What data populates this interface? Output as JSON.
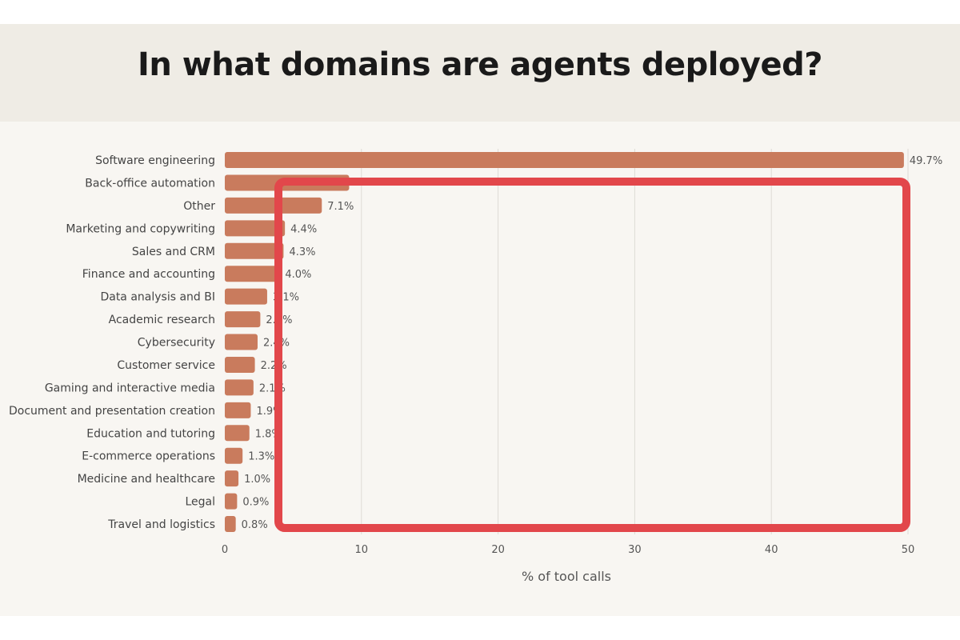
{
  "chart_data": {
    "type": "bar",
    "orientation": "horizontal",
    "title": "In what domains are agents deployed?",
    "xlabel": "% of tool calls",
    "ylabel": "",
    "xlim": [
      0,
      50
    ],
    "xticks": [
      "0",
      "10",
      "20",
      "30",
      "40",
      "50"
    ],
    "grid": true,
    "categories": [
      "Software engineering",
      "Back-office automation",
      "Other",
      "Marketing and copywriting",
      "Sales and CRM",
      "Finance and accounting",
      "Data analysis and BI",
      "Academic research",
      "Cybersecurity",
      "Customer service",
      "Gaming and interactive media",
      "Document and presentation creation",
      "Education and tutoring",
      "E-commerce operations",
      "Medicine and healthcare",
      "Legal",
      "Travel and logistics"
    ],
    "values": [
      49.7,
      9.1,
      7.1,
      4.4,
      4.3,
      4.0,
      3.1,
      2.6,
      2.4,
      2.2,
      2.1,
      1.9,
      1.8,
      1.3,
      1.0,
      0.9,
      0.8
    ],
    "value_labels": [
      "49.7%",
      "",
      "7.1%",
      "4.4%",
      "4.3%",
      "4.0%",
      "3.1%",
      "2.6%",
      "2.4%",
      "2.2%",
      "2.1%",
      "1.9%",
      "1.8%",
      "1.3%",
      "1.0%",
      "0.9%",
      "0.8%"
    ],
    "bar_color": "#c97b5d",
    "highlight_color": "#e2474b"
  }
}
